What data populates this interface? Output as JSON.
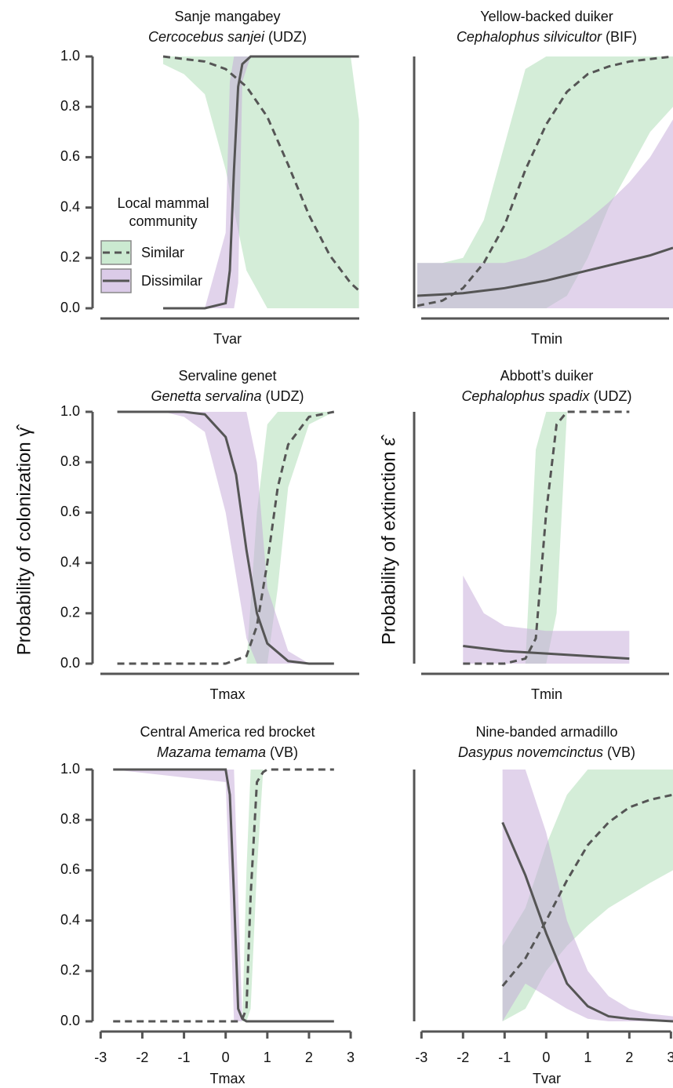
{
  "chart_data": [
    {
      "type": "line",
      "title": "Sanje mangabey",
      "species": "Cercocebus sanjei",
      "site": "(UDZ)",
      "x_label": "Tvar",
      "xlim": [
        -3.1,
        3.3
      ],
      "ylim": [
        0,
        1
      ],
      "yticks": [
        {
          "value": 0,
          "label": "0.0"
        },
        {
          "value": 0.2,
          "label": "0.2"
        },
        {
          "value": 0.4,
          "label": "0.4"
        },
        {
          "value": 0.6,
          "label": "0.6"
        },
        {
          "value": 0.8,
          "label": "0.8"
        },
        {
          "value": 1,
          "label": "1.0"
        }
      ],
      "legend": {
        "title": "Local mammal community",
        "show": true
      },
      "series": [
        {
          "name": "Similar",
          "color": "#555555",
          "band_color": "#a9dcb2",
          "line_style": "dashed",
          "x": [
            -1.5,
            -1,
            -0.5,
            0,
            0.5,
            1,
            1.5,
            2,
            2.5,
            3,
            3.2
          ],
          "values": [
            1,
            0.99,
            0.98,
            0.95,
            0.88,
            0.76,
            0.57,
            0.37,
            0.21,
            0.1,
            0.07
          ],
          "lower": [
            0.97,
            0.93,
            0.85,
            0.55,
            0.15,
            0,
            0,
            0,
            0,
            0,
            0
          ],
          "upper": [
            1,
            1,
            1,
            1,
            1,
            1,
            1,
            1,
            1,
            1,
            0.75
          ]
        },
        {
          "name": "Dissimilar",
          "color": "#555555",
          "band_color": "#c3a8d8",
          "line_style": "solid",
          "x": [
            -1.5,
            -1,
            -0.5,
            0,
            0.1,
            0.2,
            0.3,
            0.4,
            0.6,
            1,
            2,
            3,
            3.2
          ],
          "values": [
            0,
            0,
            0,
            0.02,
            0.15,
            0.55,
            0.88,
            0.97,
            1,
            1,
            1,
            1,
            1
          ],
          "lower": [
            0,
            0,
            0,
            0,
            0,
            0,
            0.1,
            0.9,
            1,
            1,
            1,
            1,
            1
          ],
          "upper": [
            0,
            0,
            0,
            0.3,
            0.9,
            1,
            1,
            1,
            1,
            1,
            1,
            1,
            1
          ]
        }
      ]
    },
    {
      "type": "line",
      "title": "Yellow-backed duiker",
      "species": "Cephalophus silvicultor",
      "site": "(BIF)",
      "x_label": "Tmin",
      "xlim": [
        -3.1,
        3.05
      ],
      "ylim": [
        0,
        1
      ],
      "series": [
        {
          "name": "Similar",
          "color": "#555555",
          "band_color": "#a9dcb2",
          "line_style": "dashed",
          "x": [
            -3.1,
            -2.5,
            -2,
            -1.5,
            -1,
            -0.5,
            0,
            0.5,
            1,
            1.5,
            2,
            2.5,
            3.05
          ],
          "values": [
            0.01,
            0.03,
            0.08,
            0.18,
            0.33,
            0.55,
            0.73,
            0.86,
            0.93,
            0.96,
            0.98,
            0.99,
            1
          ],
          "lower": [
            0,
            0,
            0,
            0,
            0,
            0,
            0,
            0.05,
            0.2,
            0.4,
            0.55,
            0.7,
            0.8
          ],
          "upper": [
            0.18,
            0.18,
            0.2,
            0.35,
            0.65,
            0.95,
            1,
            1,
            1,
            1,
            1,
            1,
            1
          ]
        },
        {
          "name": "Dissimilar",
          "color": "#555555",
          "band_color": "#c3a8d8",
          "line_style": "solid",
          "x": [
            -3.1,
            -2.5,
            -2,
            -1.5,
            -1,
            -0.5,
            0,
            0.5,
            1,
            1.5,
            2,
            2.5,
            3.05
          ],
          "values": [
            0.05,
            0.055,
            0.06,
            0.07,
            0.08,
            0.095,
            0.11,
            0.13,
            0.15,
            0.17,
            0.19,
            0.21,
            0.24
          ],
          "lower": [
            0,
            0,
            0,
            0,
            0,
            0,
            0,
            0,
            0,
            0,
            0,
            0,
            0
          ],
          "upper": [
            0.18,
            0.18,
            0.18,
            0.18,
            0.18,
            0.2,
            0.24,
            0.29,
            0.35,
            0.42,
            0.5,
            0.6,
            0.75
          ]
        }
      ]
    },
    {
      "type": "line",
      "title": "Servaline genet",
      "species": "Genetta servalina",
      "site": "(UDZ)",
      "x_label": "Tmax",
      "y_label": "Probability of colonization γ̂",
      "xlim": [
        -3.1,
        3.3
      ],
      "ylim": [
        0,
        1
      ],
      "yticks": [
        {
          "value": 0,
          "label": "0.0"
        },
        {
          "value": 0.2,
          "label": "0.2"
        },
        {
          "value": 0.4,
          "label": "0.4"
        },
        {
          "value": 0.6,
          "label": "0.6"
        },
        {
          "value": 0.8,
          "label": "0.8"
        },
        {
          "value": 1,
          "label": "1.0"
        }
      ],
      "series": [
        {
          "name": "Similar",
          "color": "#555555",
          "band_color": "#a9dcb2",
          "line_style": "dashed",
          "x": [
            -2.6,
            -1,
            0,
            0.5,
            0.75,
            1,
            1.25,
            1.5,
            2,
            2.6
          ],
          "values": [
            0,
            0,
            0,
            0.03,
            0.15,
            0.4,
            0.7,
            0.87,
            0.98,
            1
          ],
          "lower": [
            0,
            0,
            0,
            0,
            0,
            0,
            0.3,
            0.7,
            0.95,
            1
          ],
          "upper": [
            0,
            0,
            0,
            0,
            0.6,
            0.95,
            1,
            1,
            1,
            1
          ]
        },
        {
          "name": "Dissimilar",
          "color": "#555555",
          "band_color": "#c3a8d8",
          "line_style": "solid",
          "x": [
            -2.6,
            -1.5,
            -1,
            -0.5,
            0,
            0.25,
            0.5,
            0.75,
            1,
            1.5,
            2,
            2.6
          ],
          "values": [
            1,
            1,
            1,
            0.99,
            0.9,
            0.75,
            0.45,
            0.2,
            0.08,
            0.01,
            0,
            0
          ],
          "lower": [
            1,
            1,
            0.98,
            0.92,
            0.6,
            0.35,
            0.1,
            0,
            0,
            0,
            0,
            0
          ],
          "upper": [
            1,
            1,
            1,
            1,
            1,
            1,
            1,
            0.8,
            0.3,
            0.05,
            0,
            0
          ]
        }
      ]
    },
    {
      "type": "line",
      "title": "Abbott’s duiker",
      "species": "Cephalophus spadix",
      "site": "(UDZ)",
      "x_label": "Tmin",
      "y_label": "Probability of extinction ε̂",
      "xlim": [
        -3.1,
        3.05
      ],
      "ylim": [
        0,
        1
      ],
      "series": [
        {
          "name": "Similar",
          "color": "#555555",
          "band_color": "#a9dcb2",
          "line_style": "dashed",
          "x": [
            -2,
            -1,
            -0.5,
            -0.25,
            0,
            0.25,
            0.5,
            1,
            2
          ],
          "values": [
            0,
            0,
            0.02,
            0.1,
            0.6,
            0.95,
            1,
            1,
            1
          ],
          "lower": [
            0,
            0,
            0,
            0,
            0,
            0.2,
            1,
            1,
            1
          ],
          "upper": [
            0,
            0,
            0,
            0.85,
            1,
            1,
            1,
            1,
            1
          ]
        },
        {
          "name": "Dissimilar",
          "color": "#555555",
          "band_color": "#c3a8d8",
          "line_style": "solid",
          "x": [
            -2,
            -1.5,
            -1,
            0,
            1,
            2
          ],
          "values": [
            0.07,
            0.06,
            0.05,
            0.04,
            0.03,
            0.02
          ],
          "lower": [
            0,
            0,
            0,
            0,
            0,
            0
          ],
          "upper": [
            0.35,
            0.2,
            0.15,
            0.13,
            0.13,
            0.13
          ]
        }
      ]
    },
    {
      "type": "line",
      "title": "Central America red brocket",
      "species": "Mazama temama",
      "site": "(VB)",
      "x_label": "Tmax",
      "xlim": [
        -3.1,
        3.3
      ],
      "ylim": [
        0,
        1
      ],
      "yticks": [
        {
          "value": 0,
          "label": "0.0"
        },
        {
          "value": 0.2,
          "label": "0.2"
        },
        {
          "value": 0.4,
          "label": "0.4"
        },
        {
          "value": 0.6,
          "label": "0.6"
        },
        {
          "value": 0.8,
          "label": "0.8"
        },
        {
          "value": 1,
          "label": "1.0"
        }
      ],
      "xticks": [
        -3,
        -2,
        -1,
        0,
        1,
        2,
        3
      ],
      "series": [
        {
          "name": "Similar",
          "color": "#555555",
          "band_color": "#a9dcb2",
          "line_style": "dashed",
          "x": [
            -2.7,
            0.3,
            0.4,
            0.5,
            0.6,
            0.75,
            0.9,
            1,
            2.6
          ],
          "values": [
            0,
            0,
            0.01,
            0.05,
            0.5,
            0.95,
            0.99,
            1,
            1
          ],
          "lower": [
            0,
            0,
            0,
            0,
            0.05,
            0.6,
            1,
            1,
            1
          ],
          "upper": [
            0,
            0,
            0,
            0.6,
            1,
            1,
            1,
            1,
            1
          ]
        },
        {
          "name": "Dissimilar",
          "color": "#555555",
          "band_color": "#c3a8d8",
          "line_style": "solid",
          "x": [
            -2.7,
            0,
            0.1,
            0.2,
            0.3,
            0.4,
            0.5,
            2.6
          ],
          "values": [
            1,
            1,
            0.9,
            0.5,
            0.05,
            0.01,
            0,
            0
          ],
          "lower": [
            1,
            0.95,
            0.5,
            0,
            0,
            0,
            0,
            0
          ],
          "upper": [
            1,
            1,
            1,
            1,
            0.5,
            0,
            0,
            0
          ]
        }
      ]
    },
    {
      "type": "line",
      "title": "Nine-banded armadillo",
      "species": "Dasypus novemcinctus",
      "site": "(VB)",
      "x_label": "Tvar",
      "xlim": [
        -3.1,
        3.05
      ],
      "ylim": [
        0,
        1
      ],
      "xticks": [
        -3,
        -2,
        -1,
        0,
        1,
        2,
        3
      ],
      "series": [
        {
          "name": "Similar",
          "color": "#555555",
          "band_color": "#a9dcb2",
          "line_style": "dashed",
          "x": [
            -1.05,
            -0.5,
            0,
            0.5,
            1,
            1.5,
            2,
            2.5,
            3.05
          ],
          "values": [
            0.14,
            0.25,
            0.4,
            0.56,
            0.7,
            0.79,
            0.85,
            0.88,
            0.9
          ],
          "lower": [
            0,
            0.05,
            0.2,
            0.3,
            0.38,
            0.45,
            0.5,
            0.55,
            0.6
          ],
          "upper": [
            0.3,
            0.45,
            0.7,
            0.9,
            1,
            1,
            1,
            1,
            1
          ]
        },
        {
          "name": "Dissimilar",
          "color": "#555555",
          "band_color": "#c3a8d8",
          "line_style": "solid",
          "x": [
            -1.05,
            -0.5,
            0,
            0.5,
            1,
            1.5,
            2,
            2.5,
            3.05
          ],
          "values": [
            0.79,
            0.58,
            0.35,
            0.15,
            0.06,
            0.02,
            0.01,
            0.005,
            0
          ],
          "lower": [
            0,
            0.15,
            0.1,
            0.05,
            0.01,
            0,
            0,
            0,
            0
          ],
          "upper": [
            1,
            1,
            0.75,
            0.4,
            0.2,
            0.1,
            0.05,
            0.03,
            0.02
          ]
        }
      ]
    }
  ]
}
